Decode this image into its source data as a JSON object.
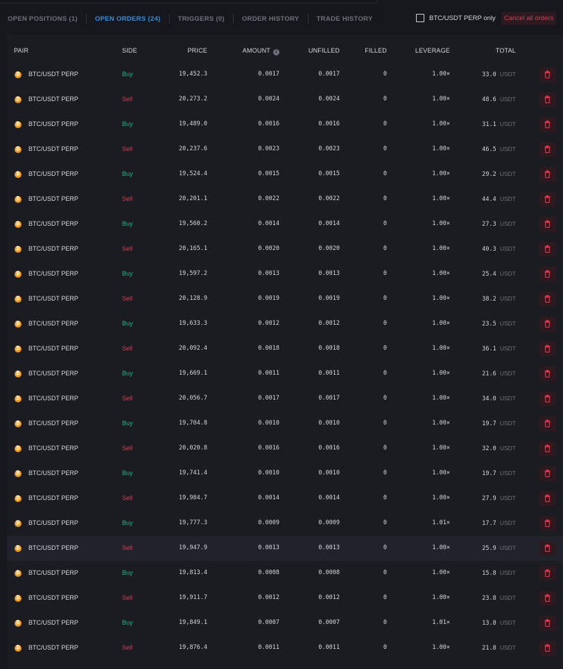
{
  "tabs": [
    {
      "label": "OPEN POSITIONS (1)",
      "active": false
    },
    {
      "label": "OPEN ORDERS (24)",
      "active": true
    },
    {
      "label": "TRIGGERS (0)",
      "active": false
    },
    {
      "label": "ORDER HISTORY",
      "active": false
    },
    {
      "label": "TRADE HISTORY",
      "active": false
    }
  ],
  "filter": {
    "label": "BTC/USDT PERP only",
    "checked": false
  },
  "cancel_all_label": "Cancel all orders",
  "columns": {
    "pair": "PAIR",
    "side": "SIDE",
    "price": "PRICE",
    "amount": "AMOUNT",
    "unfilled": "UNFILLED",
    "filled": "FILLED",
    "leverage": "LEVERAGE",
    "total": "TOTAL"
  },
  "colors": {
    "buy": "#1fb87a",
    "sell": "#e13a52",
    "active_tab": "#3c8de0",
    "coin": "#f29a1e"
  },
  "icons": {
    "coin": "bitcoin-icon",
    "delete": "trash-icon",
    "info": "info-icon"
  },
  "orders": [
    {
      "pair": "BTC/USDT PERP",
      "side": "Buy",
      "price": "19,452.3",
      "amount": "0.0017",
      "unfilled": "0.0017",
      "filled": "0",
      "leverage": "1.00×",
      "total": "33.0",
      "unit": "USDT"
    },
    {
      "pair": "BTC/USDT PERP",
      "side": "Sell",
      "price": "20,273.2",
      "amount": "0.0024",
      "unfilled": "0.0024",
      "filled": "0",
      "leverage": "1.00×",
      "total": "48.6",
      "unit": "USDT"
    },
    {
      "pair": "BTC/USDT PERP",
      "side": "Buy",
      "price": "19,489.0",
      "amount": "0.0016",
      "unfilled": "0.0016",
      "filled": "0",
      "leverage": "1.00×",
      "total": "31.1",
      "unit": "USDT"
    },
    {
      "pair": "BTC/USDT PERP",
      "side": "Sell",
      "price": "20,237.6",
      "amount": "0.0023",
      "unfilled": "0.0023",
      "filled": "0",
      "leverage": "1.00×",
      "total": "46.5",
      "unit": "USDT"
    },
    {
      "pair": "BTC/USDT PERP",
      "side": "Buy",
      "price": "19,524.4",
      "amount": "0.0015",
      "unfilled": "0.0015",
      "filled": "0",
      "leverage": "1.00×",
      "total": "29.2",
      "unit": "USDT"
    },
    {
      "pair": "BTC/USDT PERP",
      "side": "Sell",
      "price": "20,201.1",
      "amount": "0.0022",
      "unfilled": "0.0022",
      "filled": "0",
      "leverage": "1.00×",
      "total": "44.4",
      "unit": "USDT"
    },
    {
      "pair": "BTC/USDT PERP",
      "side": "Buy",
      "price": "19,560.2",
      "amount": "0.0014",
      "unfilled": "0.0014",
      "filled": "0",
      "leverage": "1.00×",
      "total": "27.3",
      "unit": "USDT"
    },
    {
      "pair": "BTC/USDT PERP",
      "side": "Sell",
      "price": "20,165.1",
      "amount": "0.0020",
      "unfilled": "0.0020",
      "filled": "0",
      "leverage": "1.00×",
      "total": "40.3",
      "unit": "USDT"
    },
    {
      "pair": "BTC/USDT PERP",
      "side": "Buy",
      "price": "19,597.2",
      "amount": "0.0013",
      "unfilled": "0.0013",
      "filled": "0",
      "leverage": "1.00×",
      "total": "25.4",
      "unit": "USDT"
    },
    {
      "pair": "BTC/USDT PERP",
      "side": "Sell",
      "price": "20,128.9",
      "amount": "0.0019",
      "unfilled": "0.0019",
      "filled": "0",
      "leverage": "1.00×",
      "total": "38.2",
      "unit": "USDT"
    },
    {
      "pair": "BTC/USDT PERP",
      "side": "Buy",
      "price": "19,633.3",
      "amount": "0.0012",
      "unfilled": "0.0012",
      "filled": "0",
      "leverage": "1.00×",
      "total": "23.5",
      "unit": "USDT"
    },
    {
      "pair": "BTC/USDT PERP",
      "side": "Sell",
      "price": "20,092.4",
      "amount": "0.0018",
      "unfilled": "0.0018",
      "filled": "0",
      "leverage": "1.00×",
      "total": "36.1",
      "unit": "USDT"
    },
    {
      "pair": "BTC/USDT PERP",
      "side": "Buy",
      "price": "19,669.1",
      "amount": "0.0011",
      "unfilled": "0.0011",
      "filled": "0",
      "leverage": "1.00×",
      "total": "21.6",
      "unit": "USDT"
    },
    {
      "pair": "BTC/USDT PERP",
      "side": "Sell",
      "price": "20,056.7",
      "amount": "0.0017",
      "unfilled": "0.0017",
      "filled": "0",
      "leverage": "1.00×",
      "total": "34.0",
      "unit": "USDT"
    },
    {
      "pair": "BTC/USDT PERP",
      "side": "Buy",
      "price": "19,704.8",
      "amount": "0.0010",
      "unfilled": "0.0010",
      "filled": "0",
      "leverage": "1.00×",
      "total": "19.7",
      "unit": "USDT"
    },
    {
      "pair": "BTC/USDT PERP",
      "side": "Sell",
      "price": "20,020.8",
      "amount": "0.0016",
      "unfilled": "0.0016",
      "filled": "0",
      "leverage": "1.00×",
      "total": "32.0",
      "unit": "USDT"
    },
    {
      "pair": "BTC/USDT PERP",
      "side": "Buy",
      "price": "19,741.4",
      "amount": "0.0010",
      "unfilled": "0.0010",
      "filled": "0",
      "leverage": "1.00×",
      "total": "19.7",
      "unit": "USDT"
    },
    {
      "pair": "BTC/USDT PERP",
      "side": "Sell",
      "price": "19,984.7",
      "amount": "0.0014",
      "unfilled": "0.0014",
      "filled": "0",
      "leverage": "1.00×",
      "total": "27.9",
      "unit": "USDT"
    },
    {
      "pair": "BTC/USDT PERP",
      "side": "Buy",
      "price": "19,777.3",
      "amount": "0.0009",
      "unfilled": "0.0009",
      "filled": "0",
      "leverage": "1.01×",
      "total": "17.7",
      "unit": "USDT"
    },
    {
      "pair": "BTC/USDT PERP",
      "side": "Sell",
      "price": "19,947.9",
      "amount": "0.0013",
      "unfilled": "0.0013",
      "filled": "0",
      "leverage": "1.00×",
      "total": "25.9",
      "unit": "USDT",
      "highlighted": true
    },
    {
      "pair": "BTC/USDT PERP",
      "side": "Buy",
      "price": "19,813.4",
      "amount": "0.0008",
      "unfilled": "0.0008",
      "filled": "0",
      "leverage": "1.00×",
      "total": "15.8",
      "unit": "USDT"
    },
    {
      "pair": "BTC/USDT PERP",
      "side": "Sell",
      "price": "19,911.7",
      "amount": "0.0012",
      "unfilled": "0.0012",
      "filled": "0",
      "leverage": "1.00×",
      "total": "23.8",
      "unit": "USDT"
    },
    {
      "pair": "BTC/USDT PERP",
      "side": "Buy",
      "price": "19,849.1",
      "amount": "0.0007",
      "unfilled": "0.0007",
      "filled": "0",
      "leverage": "1.01×",
      "total": "13.8",
      "unit": "USDT"
    },
    {
      "pair": "BTC/USDT PERP",
      "side": "Sell",
      "price": "19,876.4",
      "amount": "0.0011",
      "unfilled": "0.0011",
      "filled": "0",
      "leverage": "1.00×",
      "total": "21.8",
      "unit": "USDT"
    }
  ]
}
